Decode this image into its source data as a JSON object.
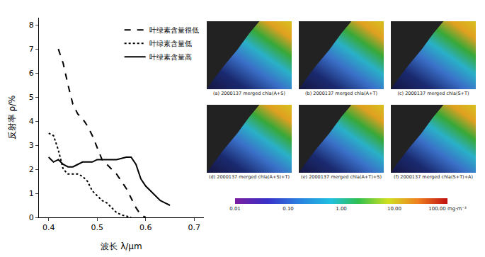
{
  "chart_data": {
    "type": "line",
    "x_label": "波长 λ/μm",
    "y_label": "反射率 ρ/%",
    "xlim": [
      0.38,
      0.72
    ],
    "xticks": [
      0.4,
      0.5,
      0.6,
      0.7
    ],
    "ylim": [
      0,
      8.3
    ],
    "yticks": [
      0,
      1,
      2,
      3,
      4,
      5,
      6,
      7,
      8
    ],
    "grid": false,
    "legend": "top right",
    "series": [
      {
        "name": "叶绿素含量很低",
        "color": "#000000",
        "line_style": "dash",
        "x": [
          0.42,
          0.43,
          0.44,
          0.45,
          0.46,
          0.47,
          0.48,
          0.49,
          0.5,
          0.51,
          0.52,
          0.53,
          0.54,
          0.55,
          0.56,
          0.57,
          0.58,
          0.59,
          0.6
        ],
        "values": [
          7.0,
          6.4,
          5.5,
          4.7,
          4.3,
          4.1,
          3.8,
          3.4,
          2.9,
          2.4,
          2.2,
          2.0,
          1.8,
          1.5,
          1.2,
          0.8,
          0.4,
          0.1,
          0.0
        ]
      },
      {
        "name": "叶绿素含量低",
        "color": "#000000",
        "line_style": "dot",
        "x": [
          0.4,
          0.41,
          0.42,
          0.43,
          0.44,
          0.45,
          0.46,
          0.47,
          0.48,
          0.49,
          0.5,
          0.51,
          0.52,
          0.53,
          0.54,
          0.55,
          0.56,
          0.57
        ],
        "values": [
          3.5,
          3.4,
          2.8,
          2.0,
          1.8,
          1.8,
          1.8,
          1.7,
          1.5,
          1.1,
          0.9,
          0.7,
          0.6,
          0.4,
          0.2,
          0.1,
          0.05,
          0.0
        ]
      },
      {
        "name": "叶绿素含量高",
        "color": "#000000",
        "line_style": "solid",
        "x": [
          0.4,
          0.41,
          0.42,
          0.43,
          0.44,
          0.45,
          0.46,
          0.47,
          0.48,
          0.49,
          0.5,
          0.52,
          0.54,
          0.56,
          0.57,
          0.58,
          0.59,
          0.6,
          0.61,
          0.62,
          0.63,
          0.64,
          0.65
        ],
        "values": [
          2.5,
          2.3,
          2.4,
          2.2,
          2.1,
          2.1,
          2.2,
          2.3,
          2.3,
          2.3,
          2.4,
          2.4,
          2.4,
          2.5,
          2.5,
          2.2,
          1.6,
          1.3,
          1.1,
          0.9,
          0.7,
          0.6,
          0.5
        ]
      }
    ]
  },
  "maps": {
    "panels": [
      "(a) 2000137 merged chla(A+S)",
      "(b) 2000137 merged chla(A+T)",
      "(c) 2000137 merged chla(S+T)",
      "(d) 2000137 merged chla(A+S)+T)",
      "(e) 2000137 merged chla(A+T)+S)",
      "(f) 2000137 merged chla(S+T)+A)"
    ],
    "colorbar": {
      "range": [
        0.01,
        100
      ],
      "log": true,
      "ticks": [
        0.01,
        {
          "value": 0.1,
          "label": "0.10"
        },
        {
          "value": 1,
          "label": "1.00"
        },
        {
          "value": 10,
          "label": "10.00"
        },
        {
          "value": 100,
          "label": "100.00 mg·m⁻³"
        }
      ]
    }
  }
}
